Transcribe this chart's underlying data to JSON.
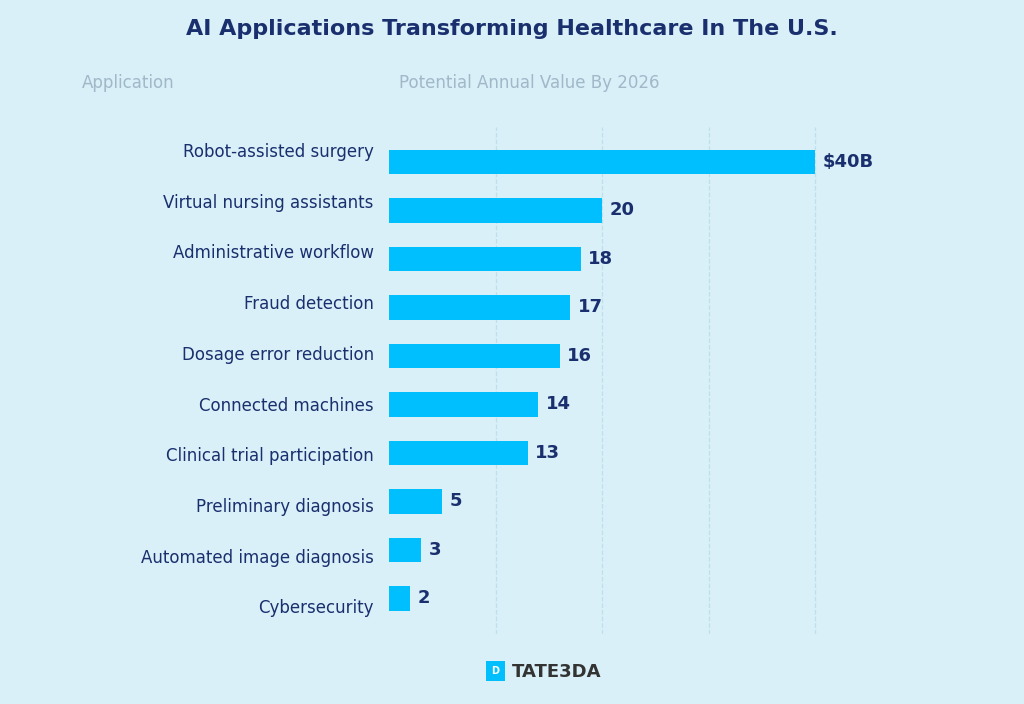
{
  "title": "AI Applications Transforming Healthcare In The U.S.",
  "col_label_left": "Application",
  "col_label_right": "Potential Annual Value By 2026",
  "categories": [
    "Robot-assisted surgery",
    "Virtual nursing assistants",
    "Administrative workflow",
    "Fraud detection",
    "Dosage error reduction",
    "Connected machines",
    "Clinical trial participation",
    "Preliminary diagnosis",
    "Automated image diagnosis",
    "Cybersecurity"
  ],
  "values": [
    40,
    20,
    18,
    17,
    16,
    14,
    13,
    5,
    3,
    2
  ],
  "labels": [
    "$40B",
    "20",
    "18",
    "17",
    "16",
    "14",
    "13",
    "5",
    "3",
    "2"
  ],
  "bar_color": "#00BFFF",
  "background_color": "#D9F0F8",
  "title_color": "#1a2f6e",
  "category_color": "#1a2f6e",
  "label_color_header": "#a0b8c8",
  "value_label_color": "#1a2f6e",
  "grid_color": "#b8dcea",
  "xlim": [
    0,
    50
  ]
}
